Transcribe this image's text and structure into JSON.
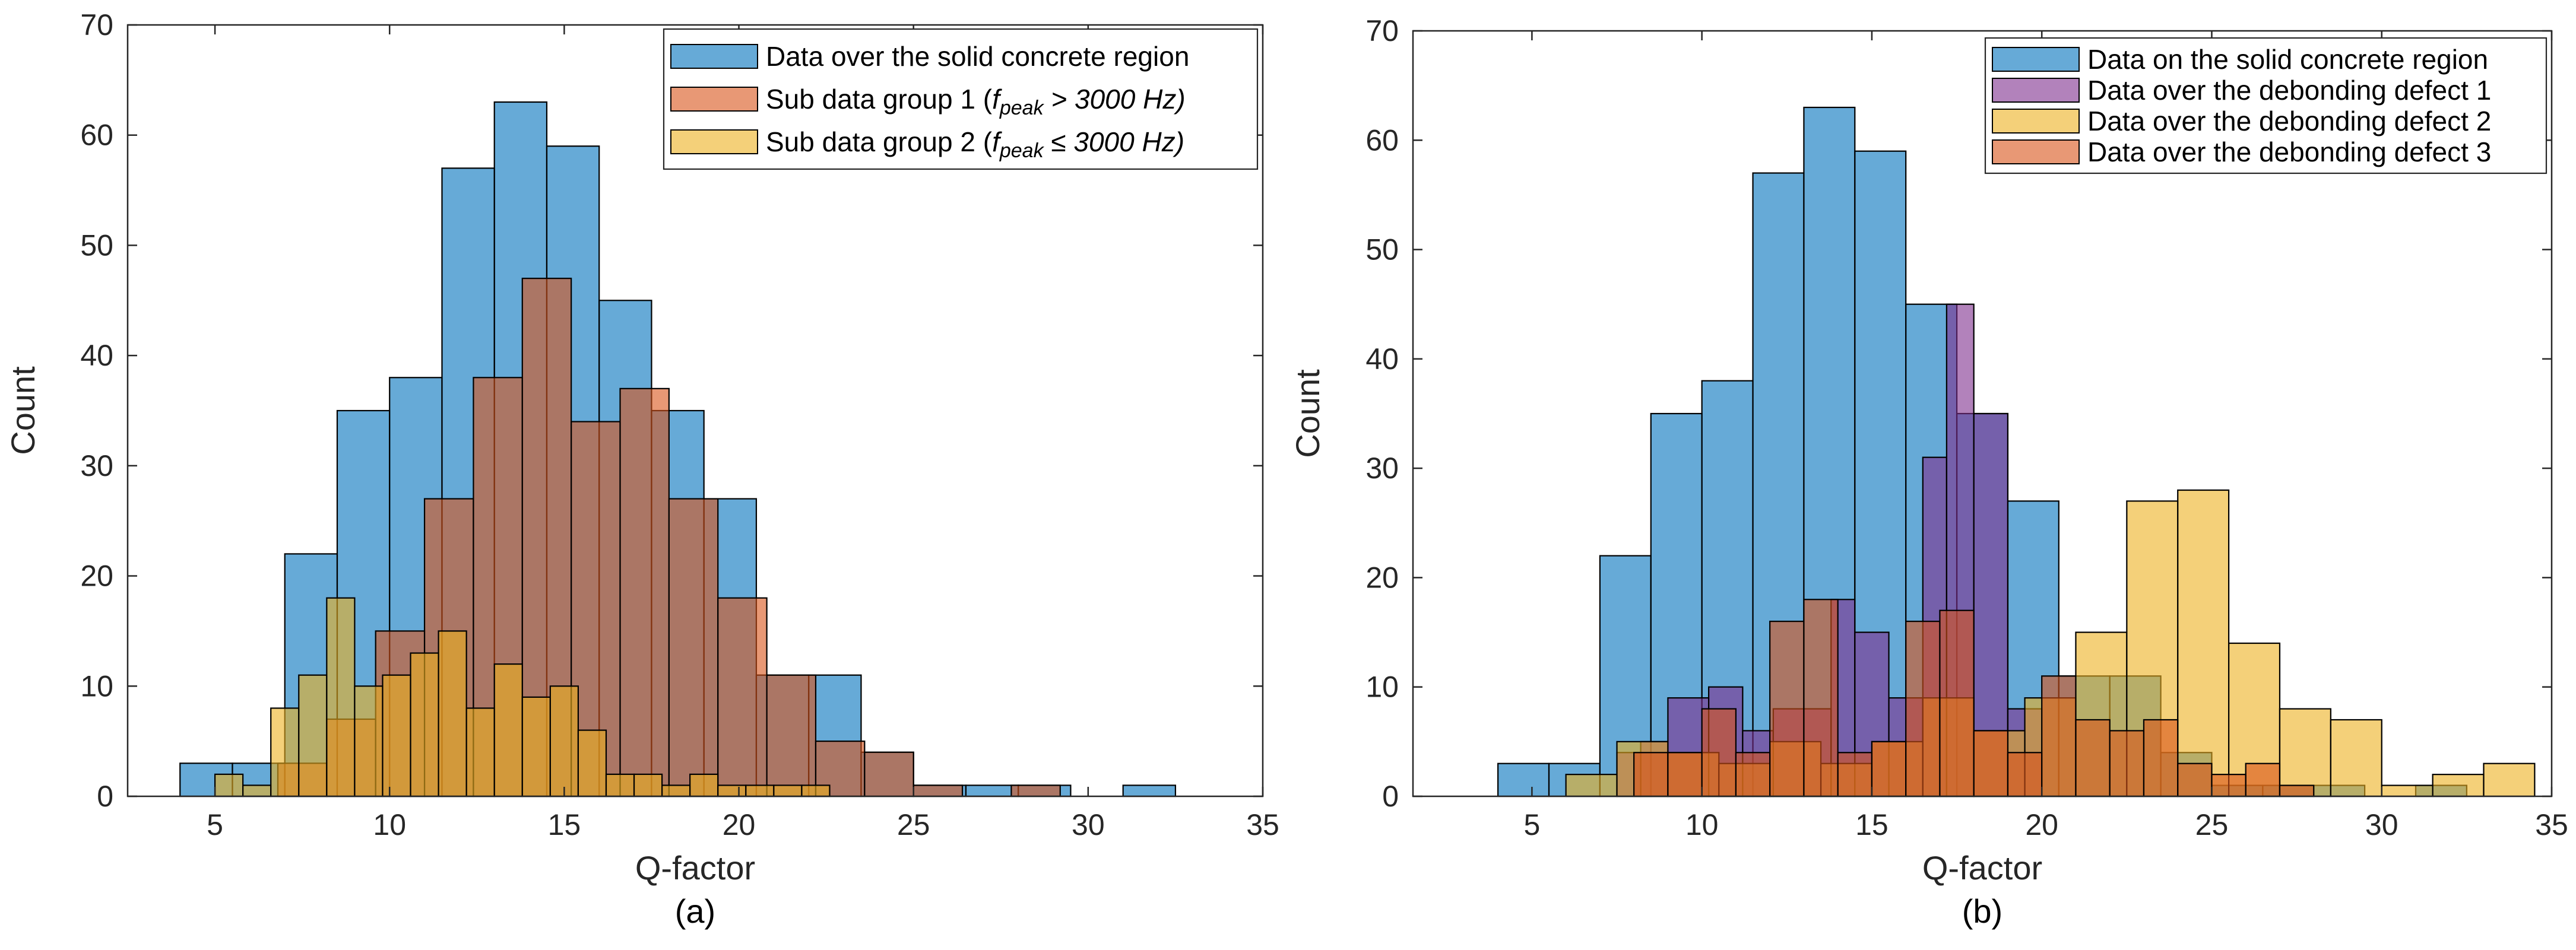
{
  "chart_data": [
    {
      "type": "bar",
      "id": "a",
      "caption": "(a)",
      "xlabel": "Q-factor",
      "ylabel": "Count",
      "xlim": [
        2.5,
        35
      ],
      "ylim": [
        0,
        70
      ],
      "xticks": [
        5,
        10,
        15,
        20,
        25,
        30,
        35
      ],
      "yticks": [
        0,
        10,
        20,
        30,
        40,
        50,
        60,
        70
      ],
      "legend": {
        "position": "top-right",
        "entries": [
          {
            "parts": [
              {
                "t": "Data over the solid concrete region"
              }
            ]
          },
          {
            "parts": [
              {
                "t": "Sub data group 1 ("
              },
              {
                "t": "f",
                "i": true
              },
              {
                "t": "peak",
                "i": true,
                "sub": true
              },
              {
                "t": " > 3000 Hz)",
                "i": true
              }
            ]
          },
          {
            "parts": [
              {
                "t": "Sub data group 2 ("
              },
              {
                "t": "f",
                "i": true
              },
              {
                "t": "peak",
                "i": true,
                "sub": true
              },
              {
                "t": " ≤ 3000 Hz)",
                "i": true
              }
            ]
          }
        ]
      },
      "series": [
        {
          "name": "Data over the solid concrete region",
          "color": "#0072BD",
          "opacity": 0.6,
          "edges": [
            4,
            5.5,
            7,
            8.5,
            10,
            11.5,
            13,
            14.5,
            16,
            17.5,
            19,
            20.5,
            22,
            23.5,
            25,
            26.5,
            28,
            29.5,
            31,
            32.5
          ],
          "counts": [
            3,
            3,
            22,
            35,
            38,
            57,
            63,
            59,
            45,
            35,
            27,
            11,
            11,
            4,
            1,
            1,
            1,
            0,
            1
          ]
        },
        {
          "name": "Sub data group 1 (f_peak > 3000 Hz)",
          "color": "#D95319",
          "opacity": 0.6,
          "edges": [
            6.8,
            8.2,
            9.6,
            11,
            12.4,
            13.8,
            15.2,
            16.6,
            18,
            19.4,
            20.8,
            22.2,
            23.6,
            25,
            26.4,
            27.8,
            29.2,
            30.6,
            32
          ],
          "counts": [
            3,
            7,
            15,
            27,
            38,
            47,
            34,
            37,
            27,
            18,
            11,
            5,
            4,
            1,
            0,
            1,
            0,
            0
          ]
        },
        {
          "name": "Sub data group 2 (f_peak ≤ 3000 Hz)",
          "color": "#EDB120",
          "opacity": 0.6,
          "edges": [
            5,
            5.8,
            6.6,
            7.4,
            8.2,
            9,
            9.8,
            10.6,
            11.4,
            12.2,
            13,
            13.8,
            14.6,
            15.4,
            16.2,
            17,
            17.8,
            18.6,
            19.4,
            20.2,
            21,
            21.8,
            22.6
          ],
          "counts": [
            2,
            1,
            8,
            11,
            18,
            10,
            11,
            13,
            15,
            8,
            12,
            9,
            10,
            6,
            2,
            2,
            1,
            2,
            1,
            1,
            1,
            1
          ]
        }
      ]
    },
    {
      "type": "bar",
      "id": "b",
      "caption": "(b)",
      "xlabel": "Q-factor",
      "ylabel": "Count",
      "xlim": [
        1.5,
        35
      ],
      "ylim": [
        0,
        70
      ],
      "xticks": [
        5,
        10,
        15,
        20,
        25,
        30,
        35
      ],
      "yticks": [
        0,
        10,
        20,
        30,
        40,
        50,
        60,
        70
      ],
      "legend": {
        "position": "top-right",
        "entries": [
          {
            "parts": [
              {
                "t": "Data on the solid concrete region"
              }
            ]
          },
          {
            "parts": [
              {
                "t": "Data over the debonding defect 1"
              }
            ]
          },
          {
            "parts": [
              {
                "t": "Data over the debonding defect 2"
              }
            ]
          },
          {
            "parts": [
              {
                "t": "Data over the debonding defect 3"
              }
            ]
          }
        ]
      },
      "series": [
        {
          "name": "Data on the solid concrete region",
          "color": "#0072BD",
          "opacity": 0.6,
          "edges": [
            4,
            5.5,
            7,
            8.5,
            10,
            11.5,
            13,
            14.5,
            16,
            17.5,
            19,
            20.5,
            22,
            23.5,
            25,
            26.5,
            28,
            29.5,
            31,
            32.5
          ],
          "counts": [
            3,
            3,
            22,
            35,
            38,
            57,
            63,
            59,
            45,
            35,
            27,
            11,
            11,
            4,
            1,
            1,
            1,
            0,
            1
          ]
        },
        {
          "name": "Data over the debonding defect 1",
          "color": "#7E2F8E",
          "opacity": 0.6,
          "edges": [
            7.5,
            8.2,
            9,
            10.2,
            11.2,
            12.1,
            13,
            13.8,
            14.5,
            15.5,
            16.5,
            17.2,
            18,
            19,
            20
          ],
          "counts": [
            4,
            5,
            9,
            10,
            6,
            8,
            8,
            18,
            15,
            9,
            31,
            45,
            35,
            8
          ]
        },
        {
          "name": "Data over the debonding defect 2",
          "color": "#EDB120",
          "opacity": 0.6,
          "edges": [
            6,
            7.5,
            9,
            10.5,
            12,
            13.5,
            15,
            16.5,
            18,
            19.5,
            21,
            22.5,
            24,
            25.5,
            27,
            28.5,
            30,
            31.5,
            33,
            34.5
          ],
          "counts": [
            2,
            5,
            4,
            3,
            5,
            3,
            5,
            9,
            6,
            9,
            15,
            27,
            28,
            14,
            8,
            7,
            1,
            2,
            3
          ]
        },
        {
          "name": "Data over the debonding defect 3",
          "color": "#D95319",
          "opacity": 0.6,
          "edges": [
            8,
            9,
            10,
            11,
            12,
            13,
            14,
            15,
            16,
            17,
            18,
            19,
            20,
            21,
            22,
            23,
            24,
            25,
            26,
            27,
            28
          ],
          "counts": [
            4,
            4,
            8,
            4,
            16,
            18,
            4,
            5,
            16,
            17,
            6,
            4,
            11,
            7,
            6,
            7,
            3,
            2,
            3,
            1
          ]
        }
      ]
    }
  ]
}
